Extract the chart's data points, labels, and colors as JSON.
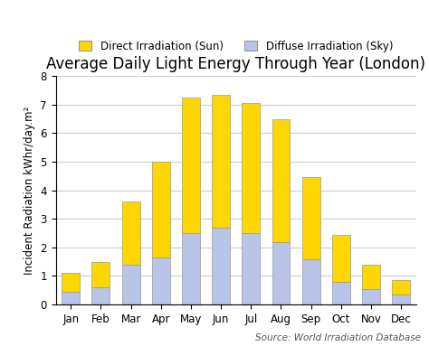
{
  "title": "Average Daily Light Energy Through Year (London)",
  "ylabel": "Incident Radiation kWhr/day.m²",
  "source_text": "Source: World Irradiation Database",
  "months": [
    "Jan",
    "Feb",
    "Mar",
    "Apr",
    "May",
    "Jun",
    "Jul",
    "Aug",
    "Sep",
    "Oct",
    "Nov",
    "Dec"
  ],
  "diffuse_sky": [
    0.45,
    0.6,
    1.4,
    1.65,
    2.5,
    2.7,
    2.5,
    2.2,
    1.58,
    0.78,
    0.55,
    0.35
  ],
  "direct_sun": [
    0.65,
    0.9,
    2.2,
    3.35,
    4.75,
    4.65,
    4.55,
    4.3,
    2.87,
    1.67,
    0.85,
    0.52
  ],
  "ylim": [
    0,
    8
  ],
  "yticks": [
    0,
    1,
    2,
    3,
    4,
    5,
    6,
    7,
    8
  ],
  "color_direct": "#FFD700",
  "color_diffuse": "#B8C4E8",
  "legend_direct": "Direct Irradiation (Sun)",
  "legend_diffuse": "Diffuse Irradiation (Sky)",
  "bar_edge_color": "#999999",
  "bar_width": 0.6,
  "grid_color": "#CCCCCC",
  "bg_color": "#FFFFFF",
  "title_fontsize": 12,
  "label_fontsize": 8.5,
  "tick_fontsize": 8.5,
  "legend_fontsize": 8.5,
  "source_fontsize": 7.5
}
